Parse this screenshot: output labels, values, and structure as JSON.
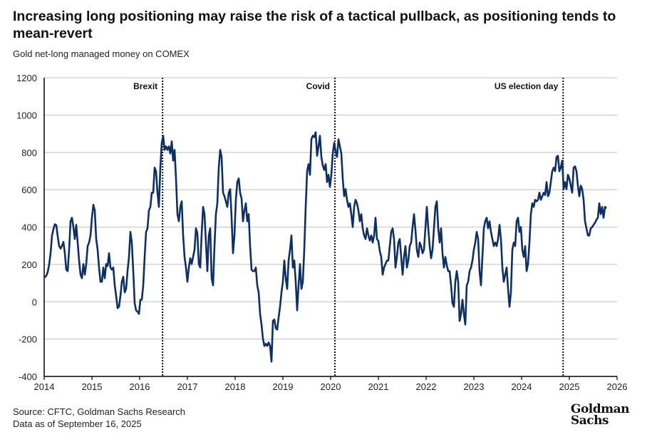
{
  "title": "Increasing long positioning may raise the risk of a tactical pullback, as positioning tends to mean-revert",
  "subtitle": "Gold net-long managed money on COMEX",
  "footer": {
    "source": "Source: CFTC, Goldman Sachs Research",
    "date": "Data as of September 16, 2025"
  },
  "logo": {
    "line1": "Goldman",
    "line2": "Sachs"
  },
  "chart_data": {
    "type": "line",
    "title": "Gold net-long managed money on COMEX",
    "xlabel": "",
    "ylabel": "",
    "xlim": [
      2014,
      2026
    ],
    "ylim": [
      -400,
      1200
    ],
    "x_ticks": [
      "2014",
      "2015",
      "2016",
      "2017",
      "2018",
      "2019",
      "2020",
      "2021",
      "2022",
      "2023",
      "2024",
      "2025",
      "2026"
    ],
    "y_ticks": [
      "1200",
      "1000",
      "800",
      "600",
      "400",
      "200",
      "0",
      "-200",
      "-400"
    ],
    "grid": "horizontal",
    "line_color": "#0d2f63",
    "annotations": [
      {
        "label": "Brexit",
        "x": 2016.48
      },
      {
        "label": "Covid",
        "x": 2020.09
      },
      {
        "label": "US election day",
        "x": 2024.87
      }
    ],
    "series": [
      {
        "name": "Net-long managed money",
        "x_start": 2014.015,
        "x_end": 2025.776,
        "values": [
          130,
          140,
          160,
          200,
          260,
          355,
          390,
          415,
          410,
          350,
          298,
          285,
          300,
          320,
          260,
          172,
          164,
          279,
          431,
          450,
          400,
          336,
          412,
          317,
          221,
          145,
          126,
          202,
          145,
          202,
          298,
          317,
          355,
          450,
          519,
          489,
          336,
          279,
          183,
          107,
          107,
          183,
          126,
          202,
          191,
          260,
          183,
          172,
          183,
          88,
          31,
          -34,
          -27,
          31,
          107,
          134,
          50,
          69,
          164,
          240,
          374,
          317,
          164,
          -8,
          -46,
          -53,
          -65,
          11,
          11,
          88,
          240,
          374,
          393,
          489,
          508,
          584,
          584,
          718,
          699,
          584,
          508,
          718,
          851,
          889,
          813,
          832,
          813,
          832,
          794,
          859,
          756,
          813,
          660,
          469,
          431,
          508,
          538,
          355,
          240,
          183,
          107,
          183,
          233,
          202,
          240,
          279,
          393,
          366,
          202,
          183,
          363,
          508,
          469,
          317,
          164,
          355,
          393,
          126,
          88,
          298,
          469,
          527,
          718,
          813,
          775,
          584,
          565,
          538,
          508,
          584,
          603,
          450,
          260,
          355,
          546,
          641,
          660,
          584,
          553,
          431,
          489,
          527,
          431,
          469,
          298,
          172,
          164,
          164,
          183,
          88,
          50,
          -65,
          -122,
          -198,
          -237,
          -225,
          -237,
          -218,
          -237,
          -321,
          -103,
          -95,
          -141,
          -149,
          -84,
          -27,
          50,
          107,
          221,
          126,
          69,
          221,
          279,
          355,
          183,
          221,
          107,
          -46,
          88,
          202,
          69,
          107,
          279,
          508,
          699,
          737,
          680,
          870,
          889,
          882,
          908,
          782,
          832,
          889,
          775,
          729,
          706,
          737,
          641,
          680,
          615,
          680,
          794,
          851,
          805,
          775,
          870,
          832,
          794,
          660,
          565,
          603,
          546,
          508,
          527,
          469,
          400,
          508,
          546,
          527,
          489,
          431,
          469,
          393,
          355,
          336,
          393,
          355,
          328,
          355,
          317,
          355,
          450,
          336,
          325,
          271,
          240,
          145,
          183,
          202,
          221,
          221,
          298,
          374,
          393,
          336,
          183,
          240,
          317,
          336,
          240,
          145,
          240,
          298,
          183,
          221,
          298,
          317,
          400,
          469,
          385,
          279,
          240,
          317,
          298,
          260,
          279,
          393,
          508,
          393,
          298,
          233,
          279,
          393,
          508,
          538,
          393,
          317,
          393,
          260,
          183,
          240,
          195,
          164,
          164,
          88,
          -8,
          -27,
          107,
          164,
          107,
          -103,
          -65,
          11,
          -65,
          -122,
          88,
          107,
          164,
          183,
          221,
          279,
          317,
          374,
          336,
          164,
          88,
          240,
          393,
          431,
          450,
          393,
          431,
          374,
          336,
          298,
          317,
          298,
          336,
          412,
          336,
          183,
          107,
          145,
          183,
          69,
          -27,
          50,
          279,
          317,
          298,
          431,
          450,
          374,
          400,
          279,
          240,
          298,
          164,
          202,
          317,
          469,
          527,
          508,
          546,
          538,
          546,
          584,
          546,
          565,
          584,
          572,
          641,
          565,
          584,
          641,
          699,
          718,
          699,
          775,
          782,
          699,
          718,
          756,
          603,
          641,
          603,
          680,
          660,
          622,
          584,
          718,
          725,
          699,
          622,
          565,
          622,
          603,
          546,
          431,
          393,
          355,
          355,
          393,
          400,
          412,
          423,
          439,
          450,
          527,
          469,
          508,
          450,
          508,
          500
        ]
      }
    ]
  }
}
